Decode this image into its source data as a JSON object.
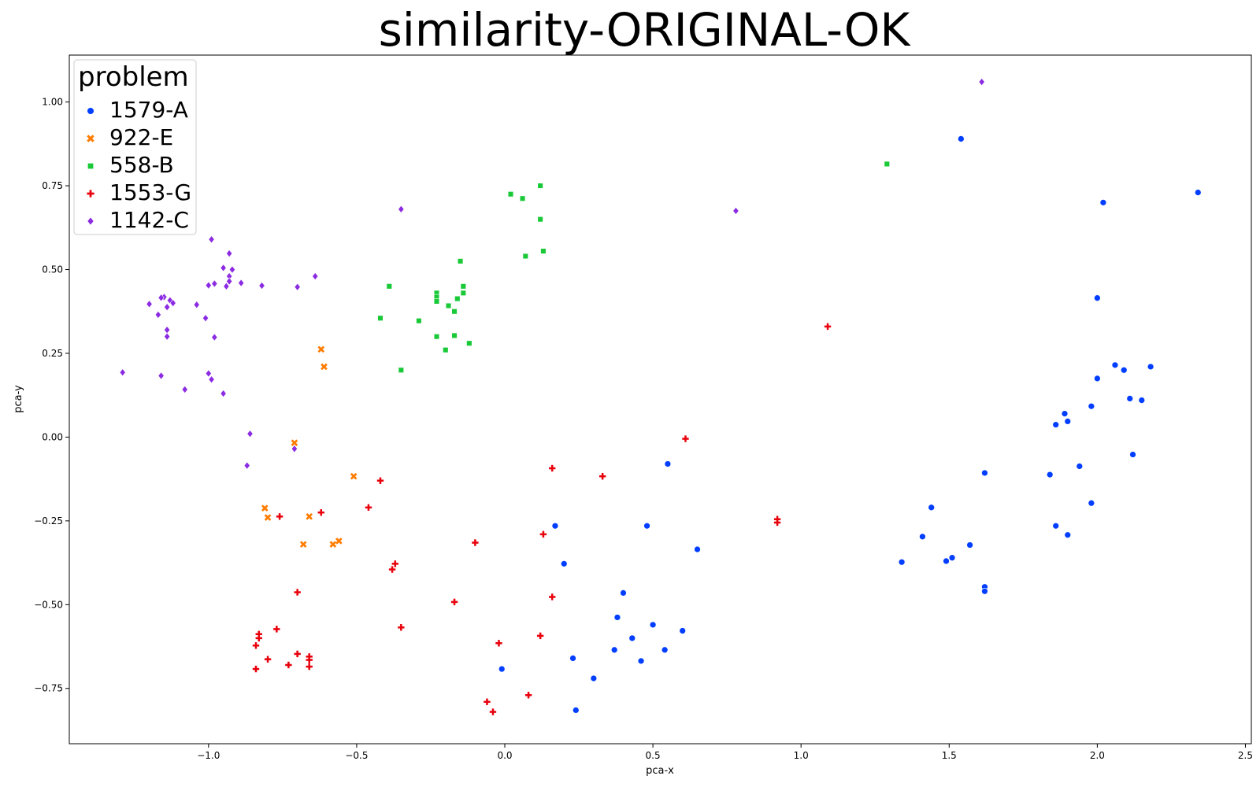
{
  "chart_data": {
    "type": "scatter",
    "title": "similarity-ORIGINAL-OK",
    "xlabel": "pca-x",
    "ylabel": "pca-y",
    "xlim": [
      -1.47,
      2.52
    ],
    "ylim": [
      -0.915,
      1.14
    ],
    "xticks": [
      -1.0,
      -0.5,
      0.0,
      0.5,
      1.0,
      1.5,
      2.0,
      2.5
    ],
    "xtick_labels": [
      "−1.0",
      "−0.5",
      "0.0",
      "0.5",
      "1.0",
      "1.5",
      "2.0",
      "2.5"
    ],
    "yticks": [
      -0.75,
      -0.5,
      -0.25,
      0.0,
      0.25,
      0.5,
      0.75,
      1.0
    ],
    "ytick_labels": [
      "−0.75",
      "−0.50",
      "−0.25",
      "0.00",
      "0.25",
      "0.50",
      "0.75",
      "1.00"
    ],
    "grid": false,
    "legend": {
      "title": "problem",
      "placement": "upper-left"
    },
    "series": [
      {
        "name": "1579-A",
        "color": "#023eff",
        "marker": "circle",
        "points": [
          [
            1.54,
            0.89
          ],
          [
            2.34,
            0.73
          ],
          [
            2.02,
            0.7
          ],
          [
            2.0,
            0.415
          ],
          [
            2.06,
            0.215
          ],
          [
            2.09,
            0.2
          ],
          [
            2.18,
            0.21
          ],
          [
            2.0,
            0.175
          ],
          [
            2.11,
            0.115
          ],
          [
            2.15,
            0.11
          ],
          [
            1.98,
            0.092
          ],
          [
            1.89,
            0.07
          ],
          [
            1.9,
            0.047
          ],
          [
            1.86,
            0.037
          ],
          [
            2.12,
            -0.052
          ],
          [
            1.94,
            -0.087
          ],
          [
            1.84,
            -0.112
          ],
          [
            1.62,
            -0.107
          ],
          [
            1.98,
            -0.197
          ],
          [
            1.44,
            -0.21
          ],
          [
            1.86,
            -0.265
          ],
          [
            1.9,
            -0.292
          ],
          [
            1.41,
            -0.297
          ],
          [
            1.57,
            -0.322
          ],
          [
            1.51,
            -0.36
          ],
          [
            1.49,
            -0.37
          ],
          [
            1.34,
            -0.373
          ],
          [
            1.62,
            -0.447
          ],
          [
            1.62,
            -0.46
          ],
          [
            0.55,
            -0.08
          ],
          [
            0.17,
            -0.265
          ],
          [
            0.48,
            -0.265
          ],
          [
            0.65,
            -0.335
          ],
          [
            0.2,
            -0.378
          ],
          [
            0.4,
            -0.465
          ],
          [
            0.38,
            -0.538
          ],
          [
            0.5,
            -0.56
          ],
          [
            0.6,
            -0.578
          ],
          [
            0.43,
            -0.6
          ],
          [
            0.37,
            -0.635
          ],
          [
            0.54,
            -0.635
          ],
          [
            0.23,
            -0.66
          ],
          [
            0.46,
            -0.668
          ],
          [
            0.3,
            -0.72
          ],
          [
            -0.01,
            -0.692
          ],
          [
            0.24,
            -0.815
          ]
        ]
      },
      {
        "name": "922-E",
        "color": "#ff7c00",
        "marker": "x",
        "points": [
          [
            -0.62,
            0.262
          ],
          [
            -0.61,
            0.21
          ],
          [
            -0.71,
            -0.017
          ],
          [
            -0.51,
            -0.117
          ],
          [
            -0.81,
            -0.212
          ],
          [
            -0.8,
            -0.24
          ],
          [
            -0.66,
            -0.237
          ],
          [
            -0.56,
            -0.31
          ],
          [
            -0.58,
            -0.32
          ],
          [
            -0.68,
            -0.32
          ]
        ]
      },
      {
        "name": "558-B",
        "color": "#1ac938",
        "marker": "square",
        "points": [
          [
            1.29,
            0.815
          ],
          [
            0.12,
            0.75
          ],
          [
            0.02,
            0.725
          ],
          [
            0.06,
            0.712
          ],
          [
            0.12,
            0.65
          ],
          [
            0.13,
            0.555
          ],
          [
            0.07,
            0.54
          ],
          [
            -0.15,
            0.525
          ],
          [
            -0.39,
            0.45
          ],
          [
            -0.14,
            0.45
          ],
          [
            -0.23,
            0.43
          ],
          [
            -0.14,
            0.43
          ],
          [
            -0.23,
            0.418
          ],
          [
            -0.16,
            0.413
          ],
          [
            -0.23,
            0.405
          ],
          [
            -0.19,
            0.392
          ],
          [
            -0.17,
            0.375
          ],
          [
            -0.42,
            0.355
          ],
          [
            -0.29,
            0.347
          ],
          [
            -0.23,
            0.3
          ],
          [
            -0.17,
            0.303
          ],
          [
            -0.12,
            0.28
          ],
          [
            -0.2,
            0.26
          ],
          [
            -0.35,
            0.2
          ]
        ]
      },
      {
        "name": "1553-G",
        "color": "#e8000b",
        "marker": "plus",
        "points": [
          [
            1.09,
            0.33
          ],
          [
            0.61,
            -0.005
          ],
          [
            0.16,
            -0.093
          ],
          [
            0.33,
            -0.117
          ],
          [
            -0.42,
            -0.13
          ],
          [
            -0.46,
            -0.21
          ],
          [
            -0.62,
            -0.225
          ],
          [
            -0.76,
            -0.237
          ],
          [
            0.92,
            -0.245
          ],
          [
            0.92,
            -0.255
          ],
          [
            0.13,
            -0.29
          ],
          [
            -0.1,
            -0.315
          ],
          [
            -0.37,
            -0.378
          ],
          [
            -0.38,
            -0.395
          ],
          [
            -0.7,
            -0.463
          ],
          [
            0.16,
            -0.477
          ],
          [
            -0.17,
            -0.492
          ],
          [
            -0.35,
            -0.568
          ],
          [
            -0.77,
            -0.573
          ],
          [
            -0.83,
            -0.588
          ],
          [
            -0.83,
            -0.6
          ],
          [
            0.12,
            -0.593
          ],
          [
            -0.02,
            -0.615
          ],
          [
            -0.84,
            -0.622
          ],
          [
            -0.7,
            -0.647
          ],
          [
            -0.66,
            -0.655
          ],
          [
            -0.66,
            -0.665
          ],
          [
            -0.8,
            -0.663
          ],
          [
            -0.73,
            -0.68
          ],
          [
            -0.66,
            -0.685
          ],
          [
            -0.84,
            -0.692
          ],
          [
            0.08,
            -0.77
          ],
          [
            -0.06,
            -0.79
          ],
          [
            -0.04,
            -0.82
          ]
        ]
      },
      {
        "name": "1142-C",
        "color": "#8b2be2",
        "marker": "diamond",
        "points": [
          [
            1.61,
            1.06
          ],
          [
            0.78,
            0.675
          ],
          [
            -0.35,
            0.68
          ],
          [
            -0.99,
            0.59
          ],
          [
            -0.93,
            0.548
          ],
          [
            -0.92,
            0.5
          ],
          [
            -0.95,
            0.505
          ],
          [
            -0.93,
            0.48
          ],
          [
            -0.64,
            0.48
          ],
          [
            -0.93,
            0.465
          ],
          [
            -0.89,
            0.46
          ],
          [
            -0.98,
            0.458
          ],
          [
            -1.0,
            0.453
          ],
          [
            -0.82,
            0.452
          ],
          [
            -0.94,
            0.45
          ],
          [
            -0.7,
            0.448
          ],
          [
            -1.15,
            0.418
          ],
          [
            -1.16,
            0.416
          ],
          [
            -1.13,
            0.408
          ],
          [
            -1.12,
            0.4
          ],
          [
            -1.2,
            0.397
          ],
          [
            -1.04,
            0.395
          ],
          [
            -1.14,
            0.388
          ],
          [
            -1.17,
            0.365
          ],
          [
            -1.01,
            0.355
          ],
          [
            -1.14,
            0.32
          ],
          [
            -1.14,
            0.3
          ],
          [
            -0.98,
            0.298
          ],
          [
            -1.29,
            0.193
          ],
          [
            -1.0,
            0.19
          ],
          [
            -1.16,
            0.183
          ],
          [
            -0.99,
            0.172
          ],
          [
            -1.08,
            0.142
          ],
          [
            -0.95,
            0.13
          ],
          [
            -0.86,
            0.01
          ],
          [
            -0.71,
            -0.035
          ],
          [
            -0.87,
            -0.085
          ]
        ]
      }
    ]
  }
}
